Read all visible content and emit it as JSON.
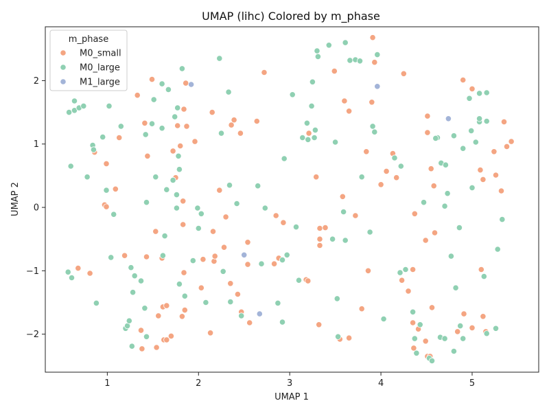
{
  "chart_data": {
    "type": "scatter",
    "title": "UMAP (lihc) Colored by m_phase",
    "xlabel": "UMAP 1",
    "ylabel": "UMAP 2",
    "xlim": [
      0.32,
      5.73
    ],
    "ylim": [
      -2.6,
      2.85
    ],
    "x_ticks": [
      1,
      2,
      3,
      4,
      5
    ],
    "y_ticks": [
      -2,
      -1,
      0,
      1,
      2
    ],
    "grid": false,
    "legend": {
      "title": "m_phase",
      "placement": "top-left",
      "entries": [
        "M0_small",
        "M0_large",
        "M1_large"
      ]
    },
    "colors": {
      "M0_small": "#f4a582",
      "M0_large": "#8fd0b2",
      "M1_large": "#a3b4d8"
    },
    "series": [
      {
        "name": "M0_small",
        "points": [
          [
            0.68,
            -0.96
          ],
          [
            0.81,
            -1.04
          ],
          [
            0.86,
            0.87
          ],
          [
            0.97,
            0.04
          ],
          [
            0.99,
            0.69
          ],
          [
            0.99,
            0.01
          ],
          [
            1.09,
            0.29
          ],
          [
            1.13,
            1.1
          ],
          [
            1.19,
            -0.76
          ],
          [
            1.33,
            1.77
          ],
          [
            1.37,
            -1.94
          ],
          [
            1.38,
            -2.23
          ],
          [
            1.41,
            1.33
          ],
          [
            1.43,
            -0.78
          ],
          [
            1.44,
            0.81
          ],
          [
            1.49,
            2.02
          ],
          [
            1.53,
            -0.38
          ],
          [
            1.54,
            -2.21
          ],
          [
            1.56,
            -1.71
          ],
          [
            1.6,
            -0.8
          ],
          [
            1.61,
            -1.57
          ],
          [
            1.62,
            -2.09
          ],
          [
            1.65,
            -1.55
          ],
          [
            1.65,
            -2.09
          ],
          [
            1.7,
            -2.03
          ],
          [
            1.72,
            0.89
          ],
          [
            1.75,
            0.47
          ],
          [
            1.77,
            1.29
          ],
          [
            1.8,
            0.97
          ],
          [
            1.82,
            -1.72
          ],
          [
            1.83,
            -0.27
          ],
          [
            1.83,
            0.1
          ],
          [
            1.84,
            1.55
          ],
          [
            1.84,
            -1.03
          ],
          [
            1.85,
            -1.62
          ],
          [
            1.86,
            1.96
          ],
          [
            1.87,
            1.28
          ],
          [
            1.96,
            1.04
          ],
          [
            2.03,
            -1.27
          ],
          [
            2.05,
            -0.82
          ],
          [
            2.13,
            -1.98
          ],
          [
            2.15,
            1.5
          ],
          [
            2.16,
            -0.38
          ],
          [
            2.17,
            -0.85
          ],
          [
            2.18,
            -0.77
          ],
          [
            2.23,
            0.27
          ],
          [
            2.28,
            -0.63
          ],
          [
            2.3,
            -0.15
          ],
          [
            2.35,
            -1.2
          ],
          [
            2.36,
            1.3
          ],
          [
            2.39,
            1.38
          ],
          [
            2.43,
            -1.37
          ],
          [
            2.46,
            1.17
          ],
          [
            2.47,
            -1.65
          ],
          [
            2.54,
            -0.55
          ],
          [
            2.54,
            -0.9
          ],
          [
            2.56,
            -1.82
          ],
          [
            2.64,
            1.36
          ],
          [
            2.72,
            2.13
          ],
          [
            2.83,
            -0.89
          ],
          [
            2.85,
            -0.13
          ],
          [
            2.88,
            -0.8
          ],
          [
            2.93,
            -0.24
          ],
          [
            3.18,
            -1.14
          ],
          [
            3.2,
            -1.16
          ],
          [
            3.21,
            1.17
          ],
          [
            3.29,
            0.48
          ],
          [
            3.32,
            -1.85
          ],
          [
            3.33,
            -0.33
          ],
          [
            3.33,
            -0.5
          ],
          [
            3.33,
            -0.6
          ],
          [
            3.39,
            -0.32
          ],
          [
            3.49,
            2.15
          ],
          [
            3.55,
            -2.08
          ],
          [
            3.58,
            0.17
          ],
          [
            3.6,
            1.68
          ],
          [
            3.65,
            1.52
          ],
          [
            3.65,
            -2.06
          ],
          [
            3.72,
            -0.13
          ],
          [
            3.79,
            -1.6
          ],
          [
            3.84,
            0.88
          ],
          [
            3.86,
            -1
          ],
          [
            3.9,
            1.66
          ],
          [
            3.91,
            2.68
          ],
          [
            3.93,
            2.29
          ],
          [
            4.0,
            0.36
          ],
          [
            4.06,
            0.57
          ],
          [
            4.13,
            0.85
          ],
          [
            4.17,
            0.47
          ],
          [
            4.23,
            -1.15
          ],
          [
            4.25,
            2.11
          ],
          [
            4.3,
            -1.32
          ],
          [
            4.35,
            -0.98
          ],
          [
            4.35,
            -1.82
          ],
          [
            4.36,
            -2.22
          ],
          [
            4.37,
            -0.1
          ],
          [
            4.41,
            -1.92
          ],
          [
            4.49,
            -0.52
          ],
          [
            4.49,
            -2.11
          ],
          [
            4.51,
            -2.35
          ],
          [
            4.51,
            1.44
          ],
          [
            4.51,
            1.18
          ],
          [
            4.54,
            -2.35
          ],
          [
            4.55,
            0.61
          ],
          [
            4.56,
            -1.58
          ],
          [
            4.58,
            0.34
          ],
          [
            4.59,
            -0.4
          ],
          [
            4.84,
            -1.96
          ],
          [
            4.9,
            2.01
          ],
          [
            4.91,
            -1.68
          ],
          [
            5.0,
            1.87
          ],
          [
            5.0,
            -1.9
          ],
          [
            5.09,
            0.59
          ],
          [
            5.1,
            -0.98
          ],
          [
            5.12,
            -1.72
          ],
          [
            5.12,
            0.44
          ],
          [
            5.15,
            -1.96
          ],
          [
            5.24,
            0.88
          ],
          [
            5.26,
            0.51
          ],
          [
            5.32,
            0.26
          ],
          [
            5.35,
            1.35
          ],
          [
            5.38,
            0.96
          ],
          [
            5.43,
            1.04
          ]
        ]
      },
      {
        "name": "M0_large",
        "points": [
          [
            0.57,
            -1.02
          ],
          [
            0.58,
            1.5
          ],
          [
            0.6,
            0.65
          ],
          [
            0.61,
            -1.11
          ],
          [
            0.64,
            1.53
          ],
          [
            0.64,
            1.68
          ],
          [
            0.69,
            1.57
          ],
          [
            0.74,
            1.6
          ],
          [
            0.78,
            0.48
          ],
          [
            0.84,
            0.98
          ],
          [
            0.85,
            0.91
          ],
          [
            0.88,
            -1.51
          ],
          [
            0.95,
            1.11
          ],
          [
            0.99,
            0.27
          ],
          [
            1.02,
            1.6
          ],
          [
            1.04,
            -0.79
          ],
          [
            1.07,
            -0.11
          ],
          [
            1.15,
            1.28
          ],
          [
            1.2,
            -1.91
          ],
          [
            1.22,
            -1.87
          ],
          [
            1.24,
            -1.79
          ],
          [
            1.26,
            -0.95
          ],
          [
            1.27,
            -2.19
          ],
          [
            1.28,
            -1.34
          ],
          [
            1.3,
            -1.08
          ],
          [
            1.37,
            -1.16
          ],
          [
            1.41,
            -1.59
          ],
          [
            1.42,
            1.15
          ],
          [
            1.43,
            -2.04
          ],
          [
            1.43,
            0.08
          ],
          [
            1.49,
            1.32
          ],
          [
            1.51,
            1.7
          ],
          [
            1.53,
            0.48
          ],
          [
            1.6,
            1.95
          ],
          [
            1.6,
            1.25
          ],
          [
            1.61,
            -0.76
          ],
          [
            1.63,
            -0.45
          ],
          [
            1.65,
            0.28
          ],
          [
            1.67,
            1.86
          ],
          [
            1.72,
            0.43
          ],
          [
            1.74,
            1.43
          ],
          [
            1.76,
            -0.01
          ],
          [
            1.76,
            0.2
          ],
          [
            1.77,
            1.57
          ],
          [
            1.78,
            0.81
          ],
          [
            1.79,
            0.6
          ],
          [
            1.79,
            -1.21
          ],
          [
            1.82,
            2.19
          ],
          [
            1.85,
            -1.4
          ],
          [
            1.94,
            -0.84
          ],
          [
            1.99,
            -0.01
          ],
          [
            2.0,
            -0.33
          ],
          [
            2.03,
            -0.1
          ],
          [
            2.08,
            -1.5
          ],
          [
            2.23,
            2.35
          ],
          [
            2.25,
            1.17
          ],
          [
            2.27,
            -1.01
          ],
          [
            2.33,
            1.82
          ],
          [
            2.34,
            0.35
          ],
          [
            2.35,
            -1.49
          ],
          [
            2.42,
            0.06
          ],
          [
            2.47,
            -1.71
          ],
          [
            2.65,
            0.34
          ],
          [
            2.69,
            -0.89
          ],
          [
            2.73,
            -0.01
          ],
          [
            2.87,
            -1.51
          ],
          [
            2.92,
            -0.83
          ],
          [
            2.92,
            -1.81
          ],
          [
            2.94,
            0.77
          ],
          [
            2.97,
            -0.75
          ],
          [
            3.03,
            1.78
          ],
          [
            3.07,
            -0.31
          ],
          [
            3.1,
            -1.15
          ],
          [
            3.14,
            1.1
          ],
          [
            3.19,
            1.33
          ],
          [
            3.2,
            1.07
          ],
          [
            3.24,
            1.6
          ],
          [
            3.25,
            1.98
          ],
          [
            3.27,
            1.1
          ],
          [
            3.28,
            1.22
          ],
          [
            3.3,
            2.47
          ],
          [
            3.31,
            2.38
          ],
          [
            3.43,
            2.56
          ],
          [
            3.47,
            -0.5
          ],
          [
            3.5,
            1.03
          ],
          [
            3.52,
            -1.44
          ],
          [
            3.53,
            -2.04
          ],
          [
            3.59,
            -0.07
          ],
          [
            3.61,
            2.6
          ],
          [
            3.61,
            -0.52
          ],
          [
            3.66,
            2.32
          ],
          [
            3.72,
            2.33
          ],
          [
            3.77,
            2.31
          ],
          [
            3.79,
            0.48
          ],
          [
            3.88,
            -0.39
          ],
          [
            3.91,
            1.28
          ],
          [
            3.93,
            1.19
          ],
          [
            3.96,
            2.41
          ],
          [
            4.03,
            -1.76
          ],
          [
            4.15,
            0.78
          ],
          [
            4.21,
            -1.03
          ],
          [
            4.22,
            0.65
          ],
          [
            4.27,
            -0.98
          ],
          [
            4.35,
            -1.65
          ],
          [
            4.37,
            -2.07
          ],
          [
            4.39,
            -2.3
          ],
          [
            4.43,
            -1.85
          ],
          [
            4.47,
            0.08
          ],
          [
            4.53,
            -2.38
          ],
          [
            4.56,
            -2.42
          ],
          [
            4.62,
            1.1
          ],
          [
            4.65,
            -2.05
          ],
          [
            4.66,
            0.7
          ],
          [
            4.7,
            0.02
          ],
          [
            4.7,
            -2.07
          ],
          [
            4.71,
            0.67
          ],
          [
            4.73,
            0.22
          ],
          [
            4.77,
            -0.77
          ],
          [
            4.8,
            1.13
          ],
          [
            4.8,
            -2.27
          ],
          [
            4.82,
            -1.27
          ],
          [
            4.86,
            -0.32
          ],
          [
            4.87,
            -1.87
          ],
          [
            4.9,
            0.93
          ],
          [
            4.97,
            1.72
          ],
          [
            4.99,
            1.21
          ],
          [
            5.0,
            0.31
          ],
          [
            5.04,
            1.03
          ],
          [
            5.08,
            1.8
          ],
          [
            5.08,
            1.35
          ],
          [
            5.08,
            1.4
          ],
          [
            5.13,
            -1.09
          ],
          [
            5.16,
            1.36
          ],
          [
            5.16,
            1.81
          ],
          [
            5.16,
            -1.99
          ],
          [
            5.26,
            -1.91
          ],
          [
            5.28,
            -0.66
          ],
          [
            5.33,
            -0.19
          ],
          [
            4.9,
            -2.07
          ],
          [
            4.6,
            1.09
          ]
        ]
      },
      {
        "name": "M1_large",
        "points": [
          [
            1.92,
            1.94
          ],
          [
            2.5,
            -0.75
          ],
          [
            2.67,
            -1.68
          ],
          [
            3.96,
            1.91
          ],
          [
            4.74,
            1.4
          ]
        ]
      }
    ]
  }
}
